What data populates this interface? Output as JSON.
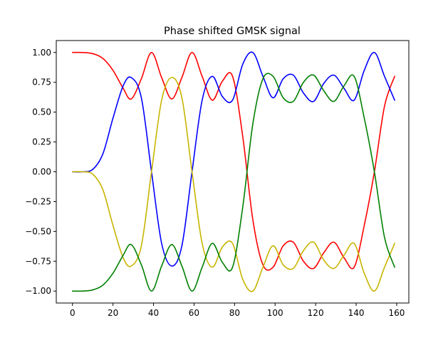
{
  "chart_data": {
    "type": "line",
    "title": "Phase shifted GMSK signal",
    "xlabel": "",
    "ylabel": "",
    "xlim": [
      -8,
      166
    ],
    "ylim": [
      -1.1,
      1.1
    ],
    "xticks": [
      0,
      20,
      40,
      60,
      80,
      100,
      120,
      140,
      160
    ],
    "yticks": [
      -1.0,
      -0.75,
      -0.5,
      -0.25,
      0.0,
      0.25,
      0.5,
      0.75,
      1.0
    ],
    "ytick_labels": [
      "−1.00",
      "−0.75",
      "−0.50",
      "−0.25",
      "0.00",
      "0.25",
      "0.50",
      "0.75",
      "1.00"
    ],
    "xtick_labels": [
      "0",
      "20",
      "40",
      "60",
      "80",
      "100",
      "120",
      "140",
      "160"
    ],
    "grid": false,
    "legend": "none",
    "x": [
      0,
      5,
      10,
      15,
      20,
      25,
      29,
      34,
      39,
      44,
      49,
      54,
      59,
      64,
      69,
      74,
      79,
      84,
      89,
      94,
      99,
      104,
      109,
      114,
      119,
      124,
      129,
      134,
      139,
      144,
      149,
      154,
      159
    ],
    "series": [
      {
        "color": "#ff0000",
        "values": [
          1.0,
          1.0,
          0.99,
          0.95,
          0.85,
          0.7,
          0.61,
          0.78,
          1.0,
          0.79,
          0.61,
          0.79,
          1.0,
          0.8,
          0.6,
          0.76,
          0.8,
          0.3,
          -0.4,
          -0.78,
          -0.8,
          -0.62,
          -0.59,
          -0.75,
          -0.81,
          -0.68,
          -0.59,
          -0.72,
          -0.8,
          -0.45,
          0.0,
          0.55,
          0.8
        ]
      },
      {
        "color": "#0000ff",
        "values": [
          0.0,
          0.0,
          0.02,
          0.15,
          0.45,
          0.72,
          0.79,
          0.62,
          0.0,
          -0.6,
          -0.79,
          -0.62,
          0.0,
          0.6,
          0.8,
          0.63,
          0.6,
          0.9,
          1.0,
          0.8,
          0.62,
          0.78,
          0.81,
          0.66,
          0.59,
          0.74,
          0.81,
          0.7,
          0.6,
          0.85,
          1.0,
          0.8,
          0.6
        ]
      },
      {
        "color": "#c8b400",
        "values": [
          0.0,
          0.0,
          -0.02,
          -0.15,
          -0.45,
          -0.72,
          -0.79,
          -0.62,
          0.0,
          0.6,
          0.79,
          0.62,
          0.0,
          -0.6,
          -0.8,
          -0.63,
          -0.6,
          -0.9,
          -1.0,
          -0.8,
          -0.62,
          -0.78,
          -0.81,
          -0.66,
          -0.59,
          -0.74,
          -0.81,
          -0.7,
          -0.6,
          -0.85,
          -1.0,
          -0.8,
          -0.6
        ]
      },
      {
        "color": "#008000",
        "values": [
          -1.0,
          -1.0,
          -0.99,
          -0.95,
          -0.85,
          -0.7,
          -0.61,
          -0.78,
          -1.0,
          -0.79,
          -0.61,
          -0.79,
          -1.0,
          -0.8,
          -0.6,
          -0.76,
          -0.8,
          -0.3,
          0.4,
          0.78,
          0.8,
          0.62,
          0.59,
          0.75,
          0.81,
          0.68,
          0.59,
          0.72,
          0.8,
          0.45,
          0.0,
          -0.55,
          -0.8
        ]
      }
    ]
  }
}
